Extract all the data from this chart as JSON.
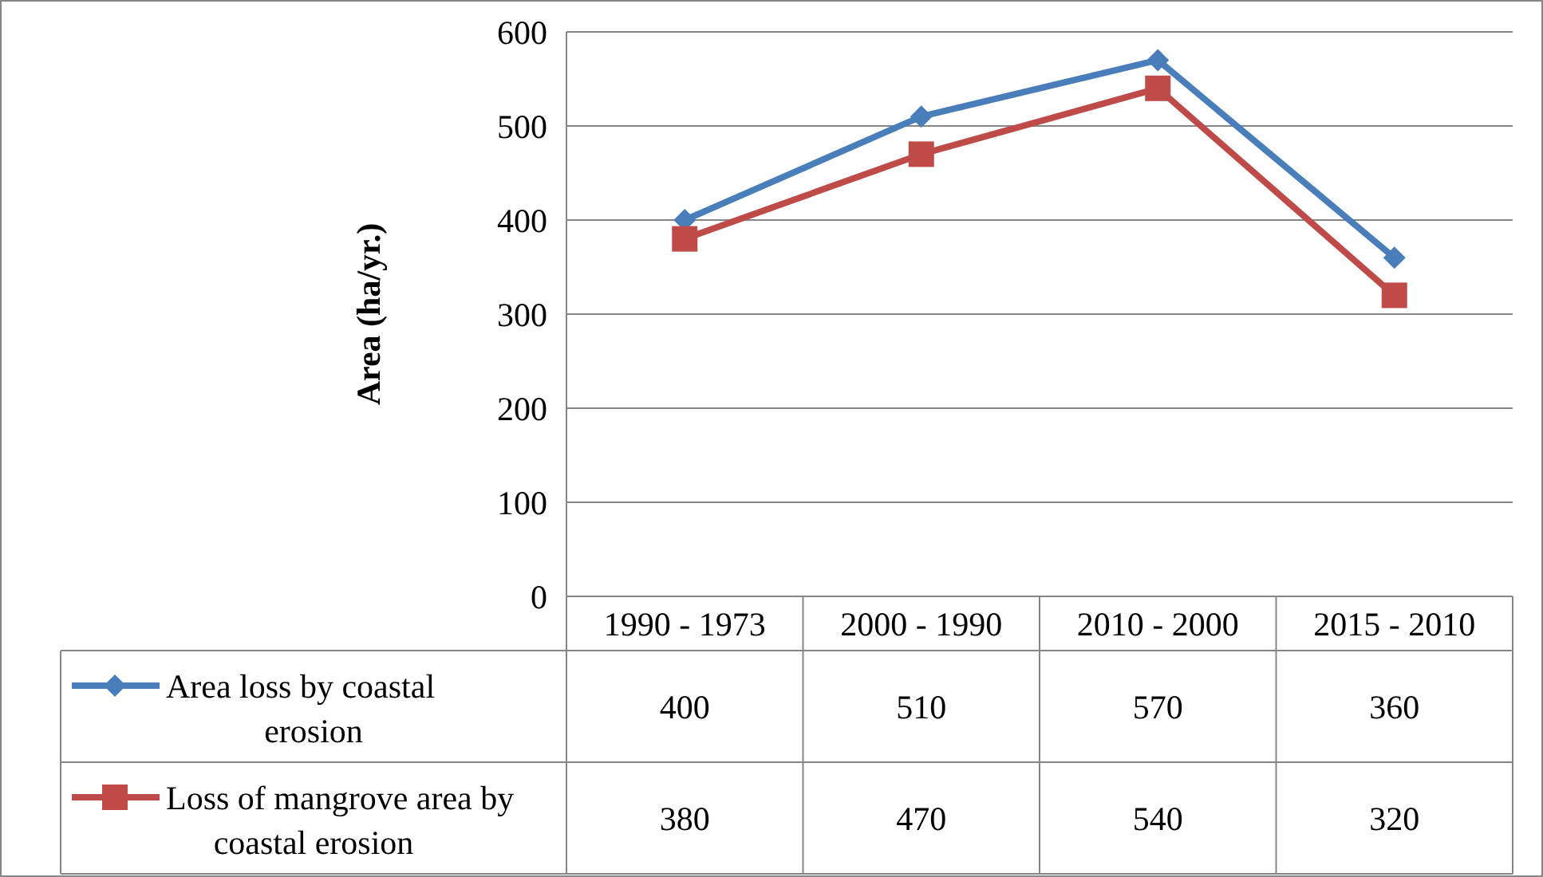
{
  "chart_data": {
    "type": "line",
    "ylabel": "Area (ha/yr.)",
    "categories": [
      "1990 - 1973",
      "2000 - 1990",
      "2010 - 2000",
      "2015 - 2010"
    ],
    "series": [
      {
        "name": "Area loss by coastal erosion",
        "color": "#4a7ebb",
        "marker": "diamond",
        "values": [
          400,
          510,
          570,
          360
        ]
      },
      {
        "name": "Loss of mangrove area by coastal erosion",
        "color": "#be4b48",
        "marker": "square",
        "values": [
          380,
          470,
          540,
          320
        ]
      }
    ],
    "ylim": [
      0,
      600
    ],
    "yticks": [
      0,
      100,
      200,
      300,
      400,
      500,
      600
    ],
    "grid": "y",
    "legend": "bottom",
    "data_labels": true
  }
}
